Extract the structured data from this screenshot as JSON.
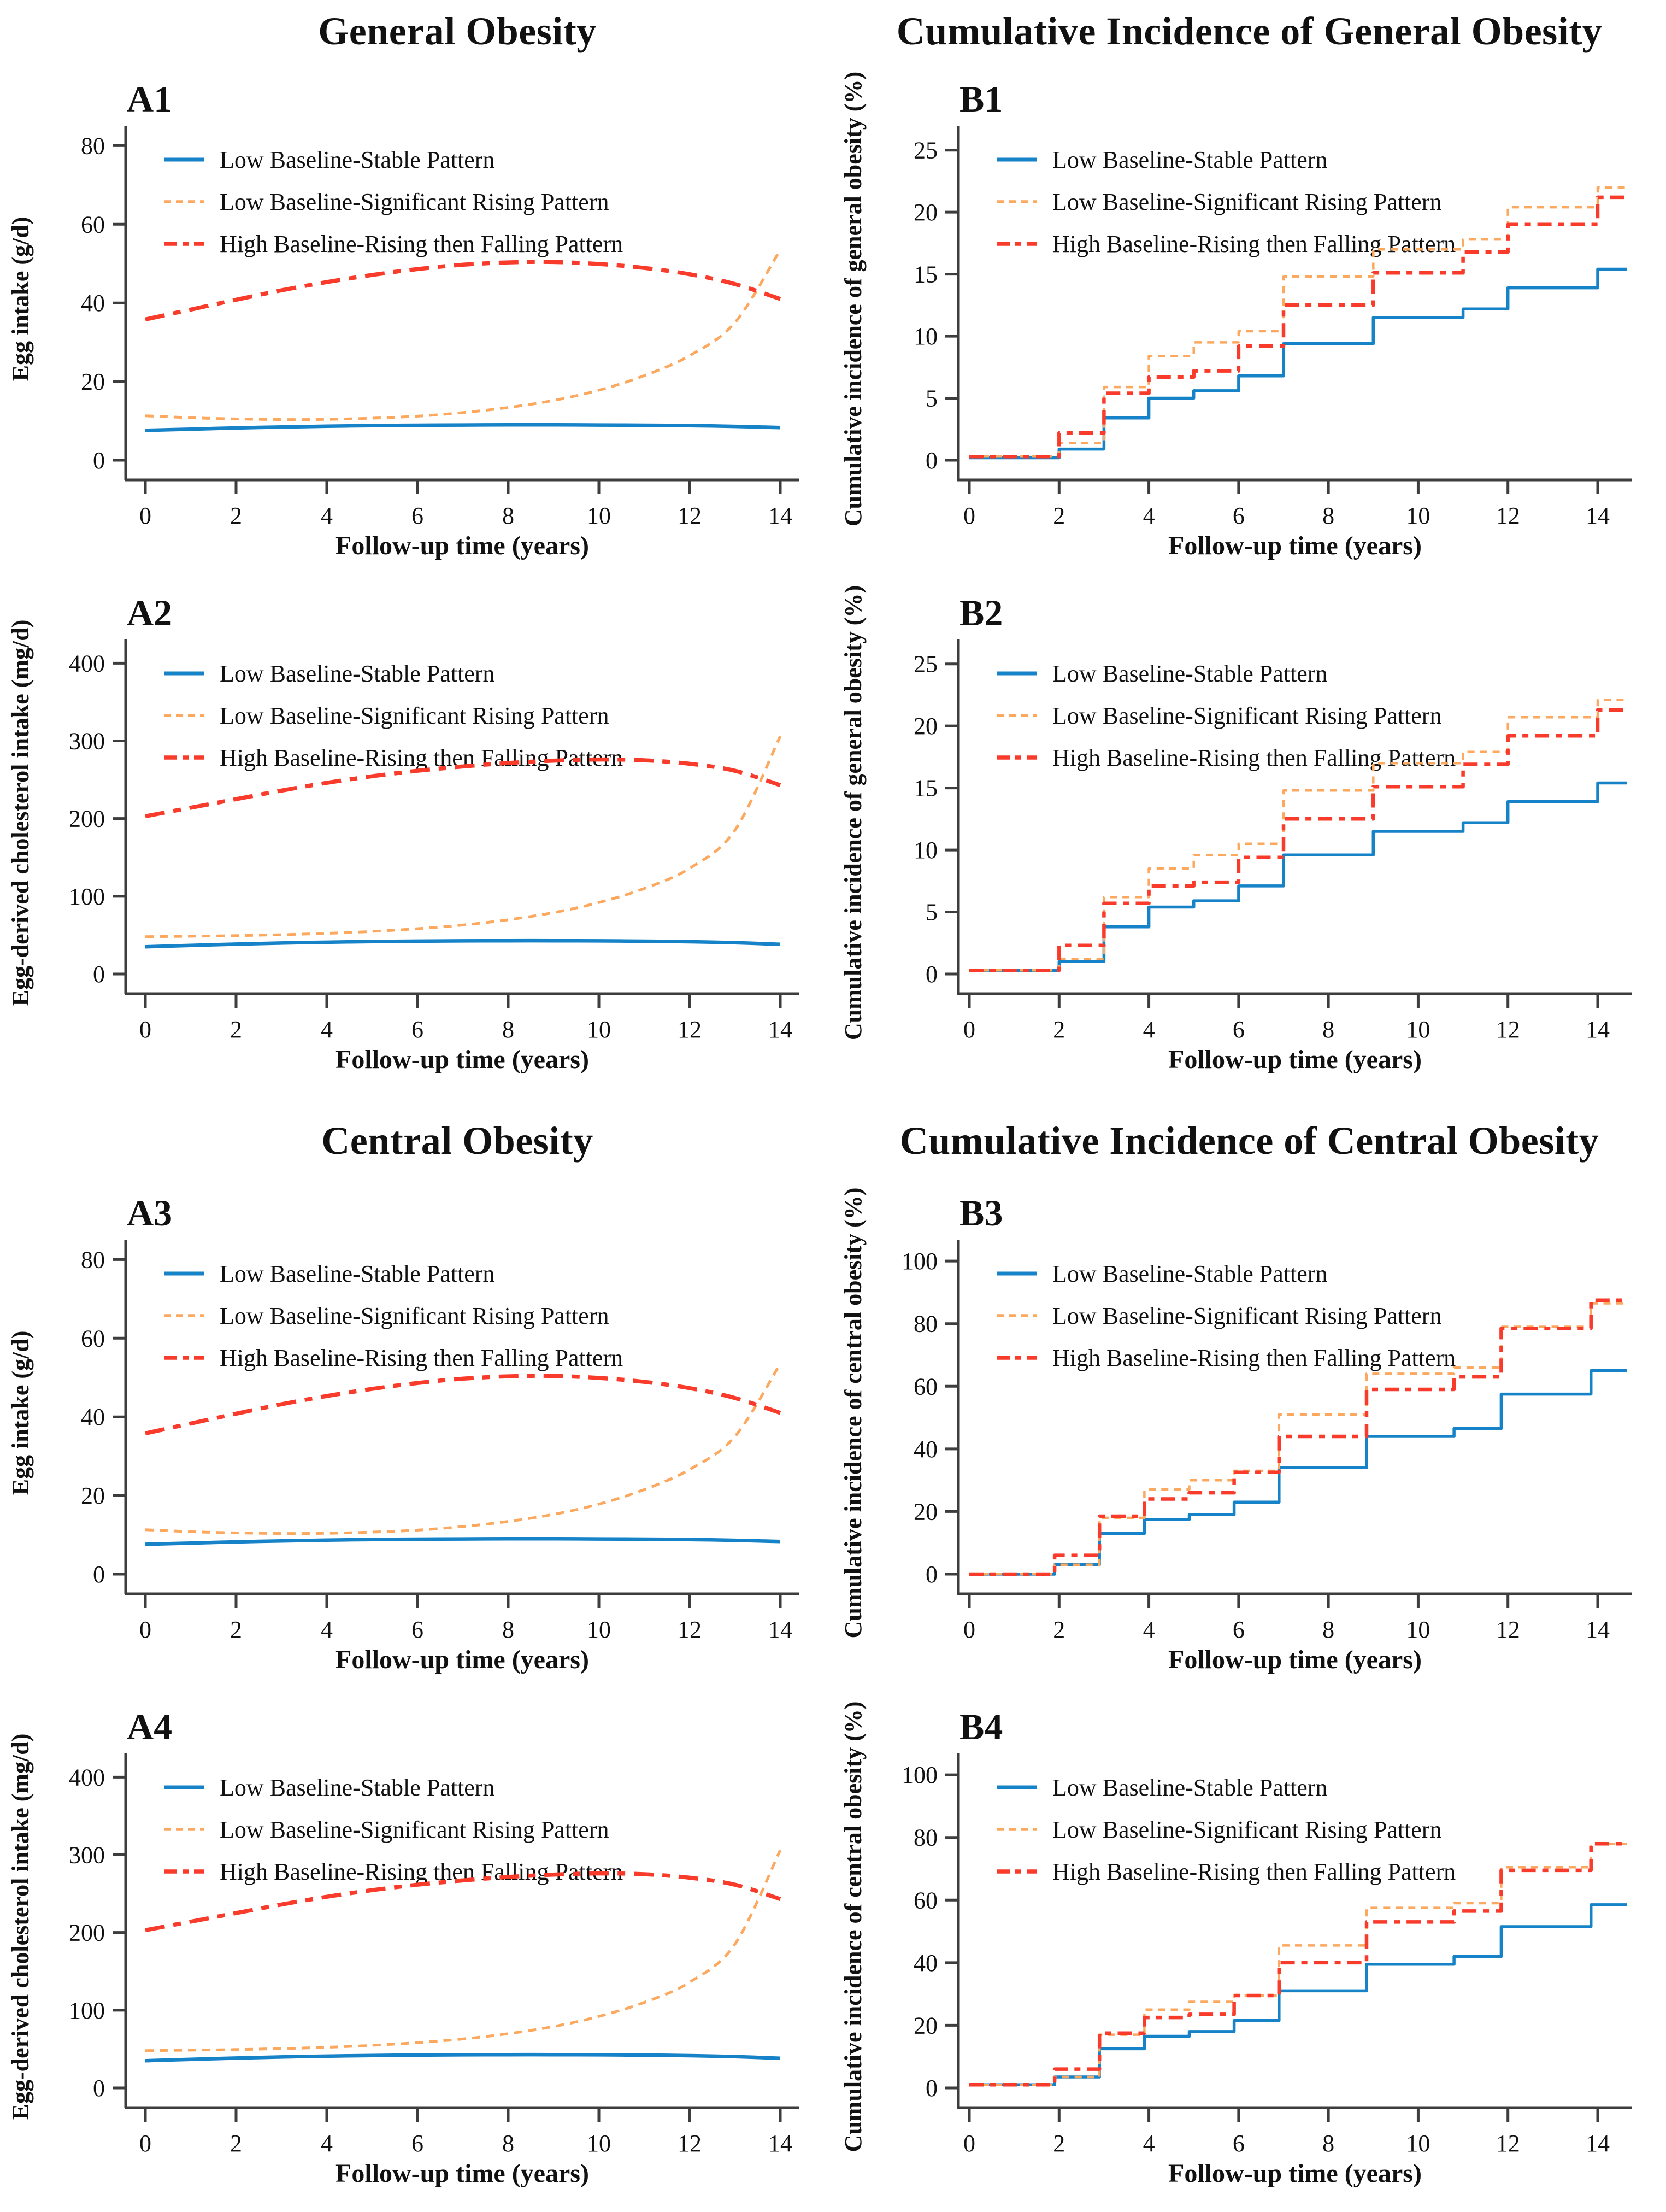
{
  "titles": {
    "general_left": "General Obesity",
    "general_right": "Cumulative Incidence of General Obesity",
    "central_left": "Central Obesity",
    "central_right": "Cumulative Incidence of Central Obesity"
  },
  "colors": {
    "blue": "#1682c8",
    "orange": "#fca85e",
    "red": "#f93b2b",
    "axis": "#3d3d3d",
    "text": "#111111"
  },
  "legend": {
    "items": [
      {
        "label": "Low Baseline-Stable Pattern",
        "color": "#1682c8",
        "style": "solid"
      },
      {
        "label": "Low Baseline-Significant Rising Pattern",
        "color": "#fca85e",
        "style": "dashed"
      },
      {
        "label": "High Baseline-Rising then Falling Pattern",
        "color": "#f93b2b",
        "style": "dashdot"
      }
    ]
  },
  "chart_data": [
    {
      "id": "A1",
      "label": "A1",
      "type": "line",
      "xlabel": "Follow-up time (years)",
      "ylabel": "Egg  intake (g/d)",
      "xticks": [
        0,
        2,
        4,
        6,
        8,
        10,
        12,
        14
      ],
      "yticks": [
        0,
        20,
        40,
        60,
        80
      ],
      "xlim": [
        0,
        14
      ],
      "ylim": [
        0,
        82
      ],
      "grid": false,
      "legend_position": "top-left",
      "x": [
        0,
        1,
        2,
        3,
        4,
        5,
        6,
        7,
        8,
        9,
        10,
        11,
        12,
        13,
        14
      ],
      "series": [
        {
          "name": "Low Baseline-Stable Pattern",
          "y": [
            7.6,
            7.9,
            8.2,
            8.45,
            8.65,
            8.8,
            8.9,
            8.95,
            9.0,
            9.0,
            8.95,
            8.9,
            8.8,
            8.6,
            8.3
          ]
        },
        {
          "name": "Low Baseline-Significant Rising Pattern",
          "y": [
            11.3,
            10.8,
            10.5,
            10.35,
            10.4,
            10.7,
            11.2,
            12.1,
            13.4,
            15.2,
            17.8,
            21.5,
            26.6,
            35,
            53.5
          ]
        },
        {
          "name": "High Baseline-Rising then Falling Pattern",
          "y": [
            35.8,
            38.3,
            40.8,
            43.2,
            45.3,
            47.1,
            48.6,
            49.7,
            50.3,
            50.4,
            49.9,
            48.9,
            47.3,
            44.8,
            41
          ]
        }
      ]
    },
    {
      "id": "B1",
      "label": "B1",
      "type": "step",
      "xlabel": "Follow-up time (years)",
      "ylabel": "Cumulative incidence of general obesity (%)",
      "xticks": [
        0,
        2,
        4,
        6,
        8,
        10,
        12,
        14
      ],
      "yticks": [
        0,
        5,
        10,
        15,
        20,
        25
      ],
      "xlim": [
        0,
        14.65
      ],
      "ylim": [
        0,
        26
      ],
      "grid": false,
      "legend_position": "top-left",
      "x": [
        0,
        2,
        3,
        4,
        5,
        6,
        7,
        9,
        11,
        12,
        14
      ],
      "series": [
        {
          "name": "Low Baseline-Stable Pattern",
          "y": [
            0.2,
            0.9,
            3.4,
            5.0,
            5.6,
            6.8,
            9.4,
            11.5,
            12.2,
            13.9,
            15.4
          ]
        },
        {
          "name": "Low Baseline-Significant Rising Pattern",
          "y": [
            0.3,
            1.4,
            5.9,
            8.4,
            9.5,
            10.4,
            14.8,
            17.0,
            17.8,
            20.4,
            22.0
          ]
        },
        {
          "name": "High Baseline-Rising then Falling Pattern",
          "y": [
            0.3,
            2.2,
            5.4,
            6.7,
            7.2,
            9.2,
            12.5,
            15.1,
            16.8,
            19.0,
            21.2
          ]
        }
      ]
    },
    {
      "id": "A2",
      "label": "A2",
      "type": "line",
      "xlabel": "Follow-up time (years)",
      "ylabel": "Egg-derived cholesterol intake (mg/d)",
      "xticks": [
        0,
        2,
        4,
        6,
        8,
        10,
        12,
        14
      ],
      "yticks": [
        0,
        100,
        200,
        300,
        400
      ],
      "xlim": [
        0,
        14
      ],
      "ylim": [
        0,
        415
      ],
      "grid": false,
      "legend_position": "top-left",
      "x": [
        0,
        1,
        2,
        3,
        4,
        5,
        6,
        7,
        8,
        9,
        10,
        11,
        12,
        13,
        14
      ],
      "series": [
        {
          "name": "Low Baseline-Stable Pattern",
          "y": [
            35,
            36.8,
            38.4,
            39.8,
            40.9,
            41.7,
            42.3,
            42.6,
            42.8,
            42.8,
            42.6,
            42.2,
            41.5,
            40.2,
            38.2
          ]
        },
        {
          "name": "Low Baseline-Significant Rising Pattern",
          "y": [
            48,
            48.6,
            49.4,
            50.6,
            52.3,
            54.8,
            58.3,
            63,
            69.8,
            79,
            92,
            110,
            136,
            185,
            306
          ]
        },
        {
          "name": "High Baseline-Rising then Falling Pattern",
          "y": [
            203,
            214,
            225,
            236,
            246,
            254.5,
            261.5,
            267,
            271.5,
            274.5,
            276,
            275,
            270.5,
            261.5,
            243
          ]
        }
      ]
    },
    {
      "id": "B2",
      "label": "B2",
      "type": "step",
      "xlabel": "Follow-up time (years)",
      "ylabel": "Cumulative incidence of general obesity (%)",
      "xticks": [
        0,
        2,
        4,
        6,
        8,
        10,
        12,
        14
      ],
      "yticks": [
        0,
        5,
        10,
        15,
        20,
        25
      ],
      "xlim": [
        0,
        14.65
      ],
      "ylim": [
        0,
        26
      ],
      "grid": false,
      "legend_position": "top-left",
      "x": [
        0,
        2,
        3,
        4,
        5,
        6,
        7,
        9,
        11,
        12,
        14
      ],
      "series": [
        {
          "name": "Low Baseline-Stable Pattern",
          "y": [
            0.3,
            1.0,
            3.8,
            5.4,
            5.9,
            7.1,
            9.6,
            11.5,
            12.2,
            13.9,
            15.4
          ]
        },
        {
          "name": "Low Baseline-Significant Rising Pattern",
          "y": [
            0.3,
            1.2,
            6.2,
            8.5,
            9.6,
            10.5,
            14.8,
            17.0,
            17.9,
            20.7,
            22.1
          ]
        },
        {
          "name": "High Baseline-Rising then Falling Pattern",
          "y": [
            0.3,
            2.3,
            5.7,
            7.1,
            7.4,
            9.4,
            12.5,
            15.1,
            16.9,
            19.2,
            21.3
          ]
        }
      ]
    },
    {
      "id": "A3",
      "label": "A3",
      "type": "line",
      "xlabel": "Follow-up time (years)",
      "ylabel": "Egg  intake (g/d)",
      "xticks": [
        0,
        2,
        4,
        6,
        8,
        10,
        12,
        14
      ],
      "yticks": [
        0,
        20,
        40,
        60,
        80
      ],
      "xlim": [
        0,
        14
      ],
      "ylim": [
        0,
        82
      ],
      "grid": false,
      "legend_position": "top-left",
      "x": [
        0,
        1,
        2,
        3,
        4,
        5,
        6,
        7,
        8,
        9,
        10,
        11,
        12,
        13,
        14
      ],
      "series": [
        {
          "name": "Low Baseline-Stable Pattern",
          "y": [
            7.6,
            7.9,
            8.2,
            8.45,
            8.65,
            8.8,
            8.9,
            8.95,
            9.0,
            9.0,
            8.95,
            8.9,
            8.8,
            8.6,
            8.3
          ]
        },
        {
          "name": "Low Baseline-Significant Rising Pattern",
          "y": [
            11.3,
            10.8,
            10.5,
            10.35,
            10.4,
            10.7,
            11.2,
            12.1,
            13.4,
            15.2,
            17.8,
            21.5,
            26.6,
            35,
            53.5
          ]
        },
        {
          "name": "High Baseline-Rising then Falling Pattern",
          "y": [
            35.8,
            38.3,
            40.8,
            43.2,
            45.3,
            47.1,
            48.6,
            49.7,
            50.3,
            50.4,
            49.9,
            48.9,
            47.3,
            44.8,
            41
          ]
        }
      ]
    },
    {
      "id": "B3",
      "label": "B3",
      "type": "step",
      "xlabel": "Follow-up time (years)",
      "ylabel": "Cumulative incidence of central obesity (%)",
      "xticks": [
        0,
        2,
        4,
        6,
        8,
        10,
        12,
        14
      ],
      "yticks": [
        0,
        20,
        40,
        60,
        80,
        100
      ],
      "xlim": [
        0,
        14.65
      ],
      "ylim": [
        0,
        103
      ],
      "grid": false,
      "legend_position": "top-left",
      "x": [
        0,
        1.9,
        2.9,
        3.9,
        4.9,
        5.9,
        6.9,
        8.85,
        10.8,
        11.85,
        13.85
      ],
      "series": [
        {
          "name": "Low Baseline-Stable Pattern",
          "y": [
            0,
            3,
            13,
            17.5,
            19,
            23,
            34,
            44,
            46.5,
            57.5,
            65
          ]
        },
        {
          "name": "Low Baseline-Significant Rising Pattern",
          "y": [
            0,
            3,
            18,
            27,
            30,
            33,
            51,
            64,
            66,
            79,
            86.5
          ]
        },
        {
          "name": "High Baseline-Rising then Falling Pattern",
          "y": [
            0,
            6,
            18.5,
            24,
            26,
            32.5,
            44,
            59,
            63,
            78.5,
            87.5
          ]
        }
      ]
    },
    {
      "id": "A4",
      "label": "A4",
      "type": "line",
      "xlabel": "Follow-up time (years)",
      "ylabel": "Egg-derived cholesterol intake (mg/d)",
      "xticks": [
        0,
        2,
        4,
        6,
        8,
        10,
        12,
        14
      ],
      "yticks": [
        0,
        100,
        200,
        300,
        400
      ],
      "xlim": [
        0,
        14
      ],
      "ylim": [
        0,
        415
      ],
      "grid": false,
      "legend_position": "top-left",
      "x": [
        0,
        1,
        2,
        3,
        4,
        5,
        6,
        7,
        8,
        9,
        10,
        11,
        12,
        13,
        14
      ],
      "series": [
        {
          "name": "Low Baseline-Stable Pattern",
          "y": [
            35,
            36.8,
            38.4,
            39.8,
            40.9,
            41.7,
            42.3,
            42.6,
            42.8,
            42.8,
            42.6,
            42.2,
            41.5,
            40.2,
            38.2
          ]
        },
        {
          "name": "Low Baseline-Significant Rising Pattern",
          "y": [
            48,
            48.6,
            49.4,
            50.6,
            52.3,
            54.8,
            58.3,
            63,
            69.8,
            79,
            92,
            110,
            136,
            185,
            306
          ]
        },
        {
          "name": "High Baseline-Rising then Falling Pattern",
          "y": [
            203,
            214,
            225,
            236,
            246,
            254.5,
            261.5,
            267,
            271.5,
            274.5,
            276,
            275,
            270.5,
            261.5,
            243
          ]
        }
      ]
    },
    {
      "id": "B4",
      "label": "B4",
      "type": "step",
      "xlabel": "Follow-up time (years)",
      "ylabel": "Cumulative incidence of central obesity (%)",
      "xticks": [
        0,
        2,
        4,
        6,
        8,
        10,
        12,
        14
      ],
      "yticks": [
        0,
        20,
        40,
        60,
        80,
        100
      ],
      "xlim": [
        0,
        14.65
      ],
      "ylim": [
        0,
        103
      ],
      "grid": false,
      "legend_position": "top-left",
      "x": [
        0,
        1.9,
        2.9,
        3.9,
        4.9,
        5.9,
        6.9,
        8.85,
        10.8,
        11.85,
        13.85
      ],
      "series": [
        {
          "name": "Low Baseline-Stable Pattern",
          "y": [
            1,
            3.5,
            12.5,
            16.5,
            18,
            21.5,
            31,
            39.5,
            42,
            51.5,
            58.5
          ]
        },
        {
          "name": "Low Baseline-Significant Rising Pattern",
          "y": [
            1,
            3.5,
            17,
            25,
            27.5,
            29.5,
            45.5,
            57.5,
            59,
            70.5,
            78
          ]
        },
        {
          "name": "High Baseline-Rising then Falling Pattern",
          "y": [
            1,
            6,
            17.5,
            22.5,
            23.5,
            29.5,
            40,
            53,
            56.5,
            69.5,
            78
          ]
        }
      ]
    }
  ]
}
